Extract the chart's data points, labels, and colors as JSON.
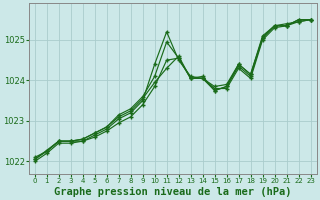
{
  "title": "Graphe pression niveau de la mer (hPa)",
  "title_fontsize": 7.5,
  "bg_color": "#cce8e8",
  "line_color": "#1a6b1a",
  "grid_color": "#aacccc",
  "xlim": [
    -0.5,
    23.5
  ],
  "ylim": [
    1021.7,
    1025.9
  ],
  "yticks": [
    1022,
    1023,
    1024,
    1025
  ],
  "xticks": [
    0,
    1,
    2,
    3,
    4,
    5,
    6,
    7,
    8,
    9,
    10,
    11,
    12,
    13,
    14,
    15,
    16,
    17,
    18,
    19,
    20,
    21,
    22,
    23
  ],
  "series": [
    {
      "x": [
        0,
        1,
        2,
        3,
        4,
        5,
        6,
        7,
        8,
        9,
        10,
        11,
        12,
        13,
        14,
        15,
        16,
        17,
        18,
        19,
        20,
        21,
        22,
        23
      ],
      "y": [
        1022.05,
        1022.25,
        1022.5,
        1022.5,
        1022.5,
        1022.65,
        1022.8,
        1023.05,
        1023.2,
        1023.5,
        1024.4,
        1025.2,
        1024.5,
        1024.1,
        1024.05,
        1023.75,
        1023.85,
        1024.35,
        1024.1,
        1025.05,
        1025.35,
        1025.4,
        1025.45,
        1025.5
      ]
    },
    {
      "x": [
        0,
        1,
        2,
        3,
        4,
        5,
        6,
        7,
        8,
        9,
        10,
        11,
        12,
        13,
        14,
        15,
        16,
        17,
        18,
        19,
        20,
        21,
        22,
        23
      ],
      "y": [
        1022.0,
        1022.2,
        1022.45,
        1022.45,
        1022.5,
        1022.6,
        1022.75,
        1022.95,
        1023.1,
        1023.4,
        1023.85,
        1024.5,
        1024.55,
        1024.05,
        1024.05,
        1023.8,
        1023.8,
        1024.3,
        1024.05,
        1025.0,
        1025.3,
        1025.35,
        1025.45,
        1025.5
      ]
    },
    {
      "x": [
        0,
        1,
        2,
        3,
        4,
        5,
        6,
        7,
        8,
        9,
        10,
        11,
        12,
        13,
        14,
        15,
        16,
        17,
        18,
        19,
        20,
        21,
        22,
        23
      ],
      "y": [
        1022.1,
        1022.25,
        1022.5,
        1022.5,
        1022.55,
        1022.7,
        1022.85,
        1023.1,
        1023.25,
        1023.55,
        1023.95,
        1024.3,
        1024.6,
        1024.05,
        1024.05,
        1023.85,
        1023.9,
        1024.4,
        1024.15,
        1025.1,
        1025.35,
        1025.35,
        1025.5,
        1025.5
      ]
    },
    {
      "x": [
        0,
        2,
        3,
        4,
        5,
        6,
        7,
        8,
        9,
        10,
        11,
        12,
        13,
        14,
        15,
        16,
        17,
        18,
        19,
        20,
        21,
        22,
        23
      ],
      "y": [
        1022.05,
        1022.5,
        1022.5,
        1022.55,
        1022.7,
        1022.85,
        1023.15,
        1023.3,
        1023.6,
        1024.1,
        1024.95,
        1024.55,
        1024.05,
        1024.1,
        1023.75,
        1023.85,
        1024.4,
        1024.15,
        1025.05,
        1025.35,
        1025.35,
        1025.5,
        1025.5
      ]
    }
  ]
}
